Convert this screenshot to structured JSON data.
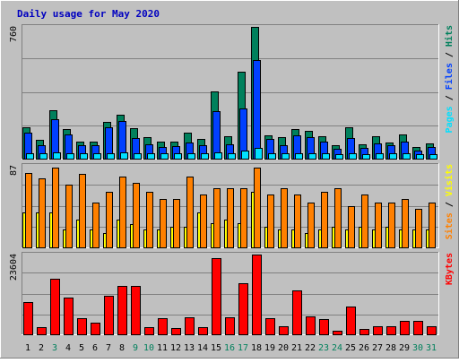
{
  "chart_data": {
    "type": "bar",
    "title": "Daily usage for May 2020",
    "colors": {
      "background": "#C0C0C0",
      "title": "#0000C0",
      "hits": "#00805C",
      "files": "#0040FF",
      "pages": "#00E0FF",
      "visits": "#FFFF00",
      "sites": "#FF8000",
      "kbytes": "#FF0000",
      "weekend_label": "#00805C",
      "grid": "#808080"
    },
    "days": [
      "1",
      "2",
      "3",
      "4",
      "5",
      "6",
      "7",
      "8",
      "9",
      "10",
      "11",
      "12",
      "13",
      "14",
      "15",
      "16",
      "17",
      "18",
      "19",
      "20",
      "21",
      "22",
      "23",
      "24",
      "25",
      "26",
      "27",
      "28",
      "29",
      "30",
      "31"
    ],
    "weekend_days": [
      "3",
      "9",
      "10",
      "16",
      "17",
      "23",
      "24",
      "30",
      "31"
    ],
    "panels": [
      {
        "ymax_label": "760",
        "ymax": 760,
        "legend": [
          {
            "label": "Pages",
            "color": "#00E0FF"
          },
          {
            "label": " / ",
            "color": "#000000"
          },
          {
            "label": "Files",
            "color": "#0040FF"
          },
          {
            "label": " / ",
            "color": "#000000"
          },
          {
            "label": "Hits",
            "color": "#00805C"
          }
        ],
        "series": [
          {
            "name": "Hits",
            "values": [
              180,
              110,
              280,
              170,
              100,
              100,
              210,
              255,
              175,
              125,
              100,
              100,
              150,
              115,
              390,
              130,
              500,
              760,
              135,
              125,
              170,
              160,
              130,
              75,
              180,
              85,
              130,
              95,
              140,
              65,
              90
            ]
          },
          {
            "name": "Files",
            "values": [
              150,
              80,
              225,
              140,
              75,
              80,
              180,
              215,
              120,
              85,
              65,
              70,
              95,
              75,
              275,
              85,
              290,
              570,
              115,
              80,
              135,
              125,
              100,
              55,
              120,
              60,
              90,
              75,
              100,
              45,
              65
            ]
          },
          {
            "name": "Pages",
            "values": [
              30,
              30,
              35,
              30,
              30,
              30,
              30,
              35,
              30,
              30,
              30,
              30,
              30,
              30,
              35,
              30,
              45,
              60,
              30,
              30,
              30,
              30,
              30,
              25,
              30,
              25,
              30,
              30,
              30,
              25,
              25
            ]
          }
        ]
      },
      {
        "ymax_label": "87",
        "ymax": 87,
        "legend": [
          {
            "label": "Sites",
            "color": "#FF8000"
          },
          {
            "label": " / ",
            "color": "#000000"
          },
          {
            "label": "Visits",
            "color": "#FFFF00"
          }
        ],
        "series": [
          {
            "name": "Visits",
            "values": [
              37,
              37,
              37,
              19,
              30,
              19,
              15,
              30,
              25,
              19,
              19,
              22,
              22,
              37,
              26,
              30,
              26,
              59,
              22,
              19,
              19,
              15,
              19,
              22,
              19,
              22,
              19,
              22,
              19,
              19,
              19
            ]
          },
          {
            "name": "Sites",
            "values": [
              79,
              74,
              85,
              67,
              78,
              48,
              59,
              76,
              69,
              59,
              52,
              52,
              76,
              56,
              63,
              63,
              63,
              85,
              56,
              63,
              56,
              48,
              59,
              63,
              44,
              56,
              48,
              48,
              52,
              41,
              48
            ]
          }
        ]
      },
      {
        "ymax_label": "23604",
        "ymax": 23604,
        "legend": [
          {
            "label": "KBytes",
            "color": "#FF0000"
          }
        ],
        "series": [
          {
            "name": "KBytes",
            "values": [
              9500,
              2200,
              16500,
              10900,
              4800,
              3400,
              11500,
              14400,
              14300,
              2100,
              4800,
              1900,
              5000,
              2100,
              22500,
              5000,
              15100,
              23604,
              4800,
              2400,
              13000,
              5300,
              4400,
              1100,
              8200,
              1700,
              2400,
              2300,
              3900,
              4000,
              2300
            ]
          }
        ]
      }
    ]
  }
}
